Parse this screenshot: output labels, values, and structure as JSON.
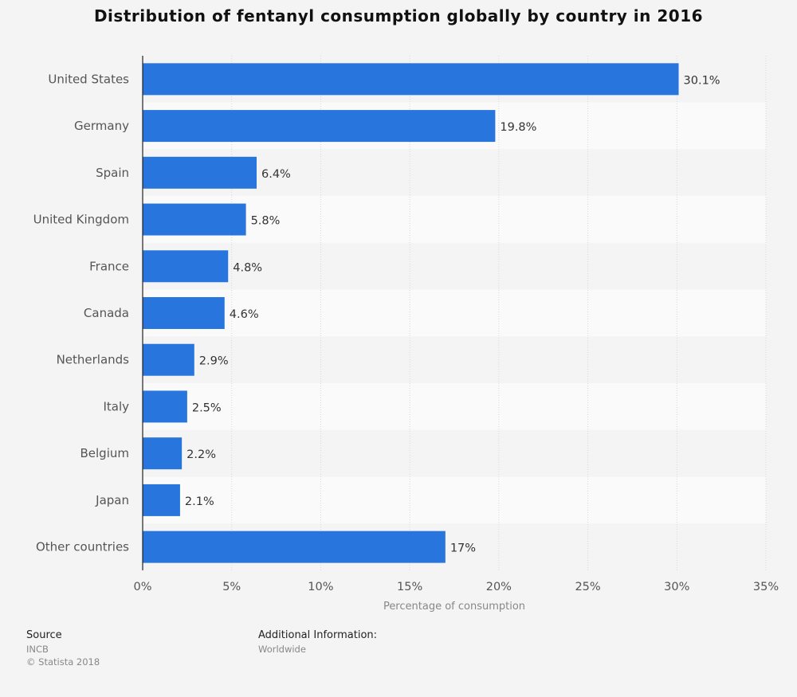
{
  "chart_data": {
    "type": "bar",
    "orientation": "horizontal",
    "title": "Distribution of fentanyl consumption globally by country in 2016",
    "categories": [
      "United States",
      "Germany",
      "Spain",
      "United Kingdom",
      "France",
      "Canada",
      "Netherlands",
      "Italy",
      "Belgium",
      "Japan",
      "Other countries"
    ],
    "values": [
      30.1,
      19.8,
      6.4,
      5.8,
      4.8,
      4.6,
      2.9,
      2.5,
      2.2,
      2.1,
      17
    ],
    "value_labels": [
      "30.1%",
      "19.8%",
      "6.4%",
      "5.8%",
      "4.8%",
      "4.6%",
      "2.9%",
      "2.5%",
      "2.2%",
      "2.1%",
      "17%"
    ],
    "xlabel": "Percentage of consumption",
    "ylabel": "",
    "xlim": [
      0,
      35
    ],
    "ticks": [
      0,
      5,
      10,
      15,
      20,
      25,
      30,
      35
    ],
    "tick_labels": [
      "0%",
      "5%",
      "10%",
      "15%",
      "20%",
      "25%",
      "30%",
      "35%"
    ],
    "grid": true,
    "bar_color": "#2876dd",
    "band_colors": [
      "#f4f4f4",
      "#fafafa"
    ]
  },
  "footer": {
    "source_heading": "Source",
    "source_lines": [
      "INCB",
      "© Statista 2018"
    ],
    "info_heading": "Additional Information:",
    "info_lines": [
      "Worldwide"
    ]
  }
}
